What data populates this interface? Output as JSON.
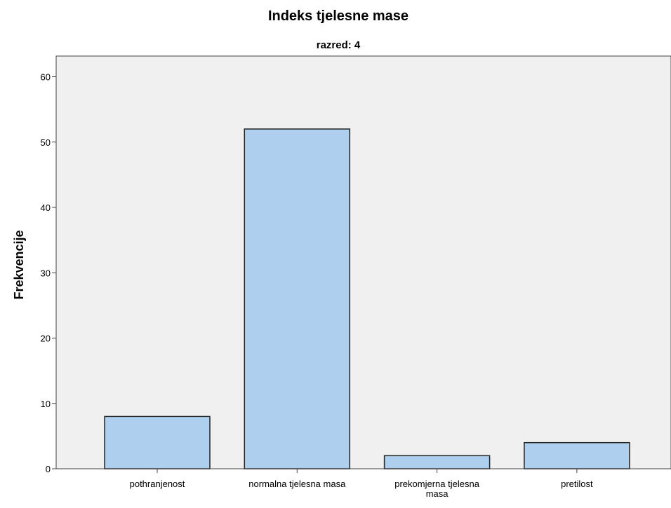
{
  "chart_data": {
    "type": "bar",
    "title": "Indeks tjelesne mase",
    "subtitle": "razred: 4",
    "xlabel": "",
    "ylabel": "Frekvencije",
    "categories": [
      [
        "pothranjenost"
      ],
      [
        "normalna tjelesna masa"
      ],
      [
        "prekomjerna tjelesna",
        "masa"
      ],
      [
        "pretilost"
      ]
    ],
    "values": [
      8,
      52,
      2,
      4
    ],
    "ylim": [
      0,
      60
    ],
    "yticks": [
      0,
      10,
      20,
      30,
      40,
      50,
      60
    ],
    "grid": false,
    "colors": {
      "bar_fill": "#aecfed",
      "bar_stroke": "#222222",
      "plot_background": "#f0f0f0"
    }
  }
}
